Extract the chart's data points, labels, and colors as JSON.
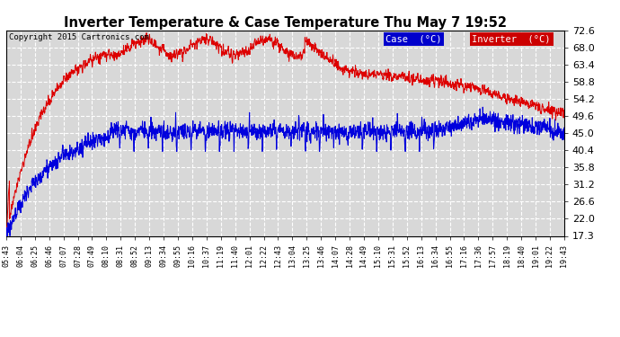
{
  "title": "Inverter Temperature & Case Temperature Thu May 7 19:52",
  "copyright": "Copyright 2015 Cartronics.com",
  "legend_case_label": "Case  (°C)",
  "legend_inverter_label": "Inverter  (°C)",
  "case_color": "#dd0000",
  "inverter_color": "#0000dd",
  "legend_case_bg": "#0000cc",
  "legend_inverter_bg": "#cc0000",
  "bg_color": "#ffffff",
  "plot_bg_color": "#d8d8d8",
  "grid_color": "#ffffff",
  "yticks": [
    17.3,
    22.0,
    26.6,
    31.2,
    35.8,
    40.4,
    45.0,
    49.6,
    54.2,
    58.8,
    63.4,
    68.0,
    72.6
  ],
  "ymin": 17.3,
  "ymax": 72.6,
  "xtick_labels": [
    "05:43",
    "06:04",
    "06:25",
    "06:46",
    "07:07",
    "07:28",
    "07:49",
    "08:10",
    "08:31",
    "08:52",
    "09:13",
    "09:34",
    "09:55",
    "10:16",
    "10:37",
    "11:19",
    "11:40",
    "12:01",
    "12:22",
    "12:43",
    "13:04",
    "13:25",
    "13:46",
    "14:07",
    "14:28",
    "14:49",
    "15:10",
    "15:31",
    "15:52",
    "16:13",
    "16:34",
    "16:55",
    "17:16",
    "17:36",
    "17:57",
    "18:19",
    "18:40",
    "19:01",
    "19:22",
    "19:43"
  ]
}
